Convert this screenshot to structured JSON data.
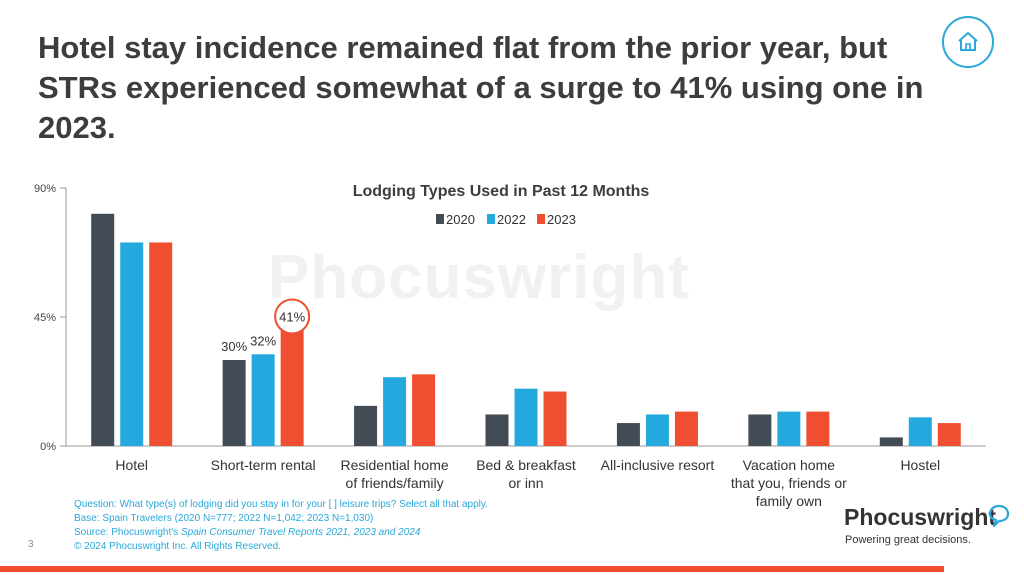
{
  "slide": {
    "title": "Hotel stay incidence remained flat from the prior year, but STRs experienced somewhat of a surge to 41% using one in 2023.",
    "page_number": "3"
  },
  "watermark": "Phocuswright",
  "footnotes": {
    "question": "Question: What type(s) of lodging did you stay in for your [ ] leisure trips? Select all that apply.",
    "base": "Base: Spain Travelers (2020 N=777; 2022 N=1,042; 2023 N=1,030)",
    "source_prefix": "Source: Phocuswright's ",
    "source_italic": "Spain Consumer Travel Reports 2021, 2023 and 2024",
    "copyright": "© 2024 Phocuswright Inc. All Rights Reserved."
  },
  "logo": {
    "wordmark": "Phocuswright",
    "tagline": "Powering great decisions."
  },
  "colors": {
    "accent": "#2aa8d8",
    "bar_2020": "#434b54",
    "bar_2022": "#23a9de",
    "bar_2023": "#f04e30",
    "brand_red": "#f04e30"
  },
  "icons": {
    "home": "home-icon",
    "logo": "speech-bubble-icon"
  },
  "chart_data": {
    "type": "bar",
    "title": "Lodging Types Used in Past 12 Months",
    "xlabel": "",
    "ylabel": "",
    "ylim": [
      0,
      90
    ],
    "y_ticks": [
      "0%",
      "45%",
      "90%"
    ],
    "y_tick_values": [
      0,
      45,
      90
    ],
    "legend_position": "top-center",
    "grid": false,
    "categories": [
      "Hotel",
      "Short-term rental",
      "Residential home of friends/family",
      "Bed & breakfast or inn",
      "All-inclusive resort",
      "Vacation home that you, friends or family own",
      "Hostel"
    ],
    "category_lines": [
      [
        "Hotel"
      ],
      [
        "Short-term rental"
      ],
      [
        "Residential home",
        "of friends/family"
      ],
      [
        "Bed & breakfast",
        "or inn"
      ],
      [
        "All-inclusive resort"
      ],
      [
        "Vacation home",
        "that you, friends or",
        "family own"
      ],
      [
        "Hostel"
      ]
    ],
    "series": [
      {
        "name": "2020",
        "values": [
          81,
          30,
          14,
          11,
          8,
          11,
          3
        ]
      },
      {
        "name": "2022",
        "values": [
          71,
          32,
          24,
          20,
          11,
          12,
          10
        ]
      },
      {
        "name": "2023",
        "values": [
          71,
          41,
          25,
          19,
          12,
          12,
          8
        ]
      }
    ],
    "data_labels": [
      {
        "series": 0,
        "category": 1,
        "text": "30%"
      },
      {
        "series": 1,
        "category": 1,
        "text": "32%"
      },
      {
        "series": 2,
        "category": 1,
        "text": "41%",
        "highlight": true
      }
    ]
  }
}
